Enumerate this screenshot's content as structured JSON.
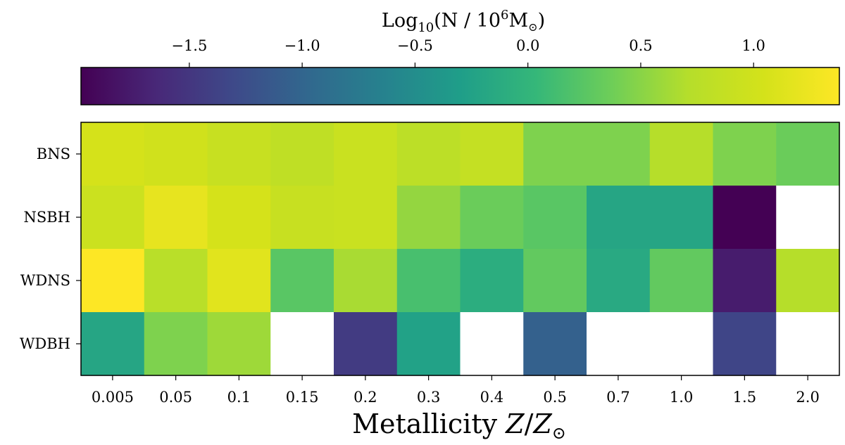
{
  "chart_data": {
    "type": "heatmap",
    "colorbar": {
      "label_prefix": "Log",
      "label_sub": "10",
      "label_mid": "(N / 10",
      "label_sup": "6",
      "label_unit": "M",
      "label_sun": "⊙",
      "label_close": ")",
      "vmin": -1.98,
      "vmax": 1.38,
      "ticks": [
        -1.5,
        -1.0,
        -0.5,
        0.0,
        0.5,
        1.0
      ],
      "tick_labels": [
        "−1.5",
        "−1.0",
        "−0.5",
        "0.0",
        "0.5",
        "1.0"
      ],
      "colormap": "viridis"
    },
    "x_categories": [
      "0.005",
      "0.05",
      "0.1",
      "0.15",
      "0.2",
      "0.3",
      "0.4",
      "0.5",
      "0.7",
      "1.0",
      "1.5",
      "2.0"
    ],
    "y_categories": [
      "BNS",
      "NSBH",
      "WDNS",
      "WDBH"
    ],
    "xlabel": {
      "prefix": "Metallicity ",
      "z": "Z",
      "slash": "/",
      "z2": "Z",
      "sun": "⊙"
    },
    "values": [
      [
        1.05,
        1.0,
        0.9,
        0.82,
        0.92,
        0.78,
        0.87,
        0.45,
        0.45,
        0.72,
        0.45,
        0.35
      ],
      [
        0.95,
        1.2,
        1.05,
        0.9,
        0.92,
        0.55,
        0.35,
        0.25,
        -0.2,
        -0.2,
        -1.98,
        null
      ],
      [
        1.38,
        0.75,
        1.15,
        0.25,
        0.65,
        0.15,
        -0.1,
        0.3,
        -0.15,
        0.3,
        -1.75,
        0.72
      ],
      [
        -0.2,
        0.45,
        0.6,
        null,
        -1.45,
        -0.25,
        null,
        -1.05,
        null,
        null,
        -1.35,
        null
      ]
    ]
  }
}
